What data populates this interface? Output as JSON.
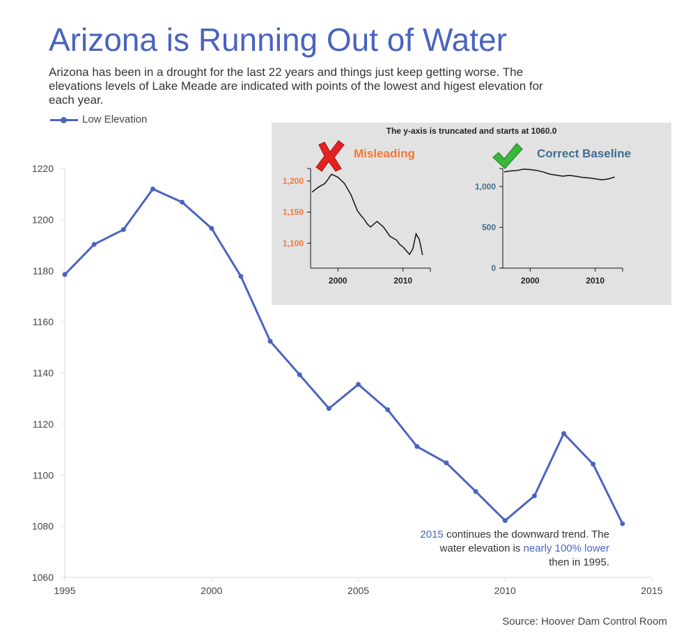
{
  "header": {
    "title": "Arizona is Running Out of Water",
    "subtitle": "Arizona has been in a drought for the last 22 years and things just keep getting worse. The elevations levels of Lake Meade are indicated with points of the lowest and higest elevation for each year."
  },
  "legend": {
    "label": "Low Elevation"
  },
  "annotation": {
    "part1": "2015",
    "part2": " continues the downward trend. The water elevation is ",
    "part3": "nearly 100% lower",
    "part4": " then in 1995."
  },
  "source": "Source: Hoover Dam Control Room",
  "colors": {
    "series": "#4a63c0",
    "misleading": "#f07838",
    "correct": "#3f6e8f",
    "inset_bg": "#e2e2e2"
  },
  "chart_data": [
    {
      "type": "line",
      "series": [
        {
          "name": "Low Elevation",
          "x": [
            1995,
            1996,
            1997,
            1998,
            1999,
            2000,
            2001,
            2002,
            2003,
            2004,
            2005,
            2006,
            2007,
            2008,
            2009,
            2010,
            2011,
            2012,
            2013,
            2014
          ],
          "values": [
            1178.5,
            1190.3,
            1196.1,
            1212.0,
            1206.8,
            1196.6,
            1177.8,
            1152.4,
            1139.3,
            1126.1,
            1135.5,
            1125.6,
            1111.2,
            1104.8,
            1093.6,
            1082.2,
            1091.9,
            1116.3,
            1104.3,
            1081.0
          ]
        }
      ],
      "xlim": [
        1995,
        2015
      ],
      "ylim": [
        1060,
        1220
      ],
      "xticks": [
        "1995",
        "2000",
        "2005",
        "2010",
        "2015"
      ],
      "yticks": [
        "1060",
        "1080",
        "1100",
        "1120",
        "1140",
        "1160",
        "1180",
        "1200",
        "1220"
      ],
      "grid": false,
      "legend_position": "top-left"
    },
    {
      "type": "line",
      "title": "Misleading",
      "series": [
        {
          "x": [
            1996,
            1997,
            1998,
            1998.5,
            1999,
            2000,
            2001,
            2002,
            2003,
            2003.5,
            2004,
            2004.5,
            2005,
            2006,
            2007,
            2008,
            2009,
            2009.5,
            2010,
            2011,
            2011.5,
            2012,
            2012.5,
            2013
          ],
          "values": [
            1182,
            1190,
            1196,
            1203,
            1211,
            1206,
            1196,
            1178,
            1152,
            1145,
            1139,
            1131,
            1126,
            1135,
            1126,
            1111,
            1105,
            1098,
            1094,
            1082,
            1091,
            1115,
            1106,
            1081
          ]
        }
      ],
      "xticks": [
        "2000",
        "2010"
      ],
      "yticks": [
        "1,100",
        "1,150",
        "1,200"
      ],
      "ylim": [
        1060,
        1220
      ]
    },
    {
      "type": "line",
      "title": "Correct Baseline",
      "series": [
        {
          "x": [
            1996,
            1997,
            1998,
            1999,
            2000,
            2001,
            2002,
            2003,
            2004,
            2005,
            2006,
            2007,
            2008,
            2009,
            2010,
            2011,
            2012,
            2013
          ],
          "values": [
            1178,
            1190,
            1196,
            1212,
            1207,
            1197,
            1178,
            1152,
            1139,
            1126,
            1136,
            1126,
            1111,
            1105,
            1094,
            1082,
            1092,
            1116
          ]
        }
      ],
      "xticks": [
        "2000",
        "2010"
      ],
      "yticks": [
        "0",
        "500",
        "1,000"
      ],
      "ylim": [
        0,
        1220
      ]
    }
  ],
  "inset": {
    "title": "The y-axis is truncated and starts at 1060.0",
    "misleading_label": "Misleading",
    "correct_label": "Correct Baseline"
  }
}
